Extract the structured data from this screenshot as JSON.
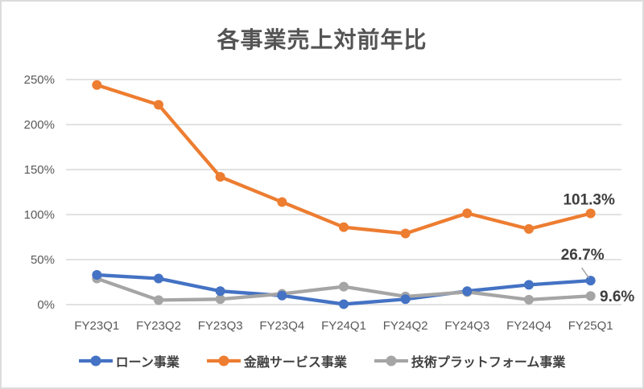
{
  "window": {
    "background": "#ffffff",
    "border_color": "#dcdcdc"
  },
  "chart_data": {
    "type": "line",
    "title": "各事業売上対前年比",
    "categories": [
      "FY23Q1",
      "FY23Q2",
      "FY23Q3",
      "FY23Q4",
      "FY24Q1",
      "FY24Q2",
      "FY24Q3",
      "FY24Q4",
      "FY25Q1"
    ],
    "series": [
      {
        "name": "ローン事業",
        "color": "#4472C4",
        "values": [
          33,
          29,
          15,
          10,
          0.5,
          6,
          15,
          22,
          26.7
        ],
        "end_label": "26.7%"
      },
      {
        "name": "金融サービス事業",
        "color": "#ED7D31",
        "values": [
          244,
          222,
          142,
          114,
          86,
          79,
          101.5,
          84,
          101.3
        ],
        "end_label": "101.3%"
      },
      {
        "name": "技術プラットフォーム事業",
        "color": "#A5A5A5",
        "values": [
          29,
          5,
          6,
          12,
          20,
          9,
          14,
          5.5,
          9.6
        ],
        "end_label": "9.6%"
      }
    ],
    "y_axis": {
      "min": 0,
      "max": 250,
      "step": 50,
      "tick_labels": [
        "0%",
        "50%",
        "100%",
        "150%",
        "200%",
        "250%"
      ]
    },
    "xlabel": "",
    "ylabel": "",
    "grid": true,
    "legend_position": "bottom",
    "colors": {
      "title": "#545454",
      "axis_label": "#595959",
      "data_label": "#3d3d3d",
      "gridline": "#d9d9d9",
      "callout_line": "#9e9e9e"
    }
  }
}
